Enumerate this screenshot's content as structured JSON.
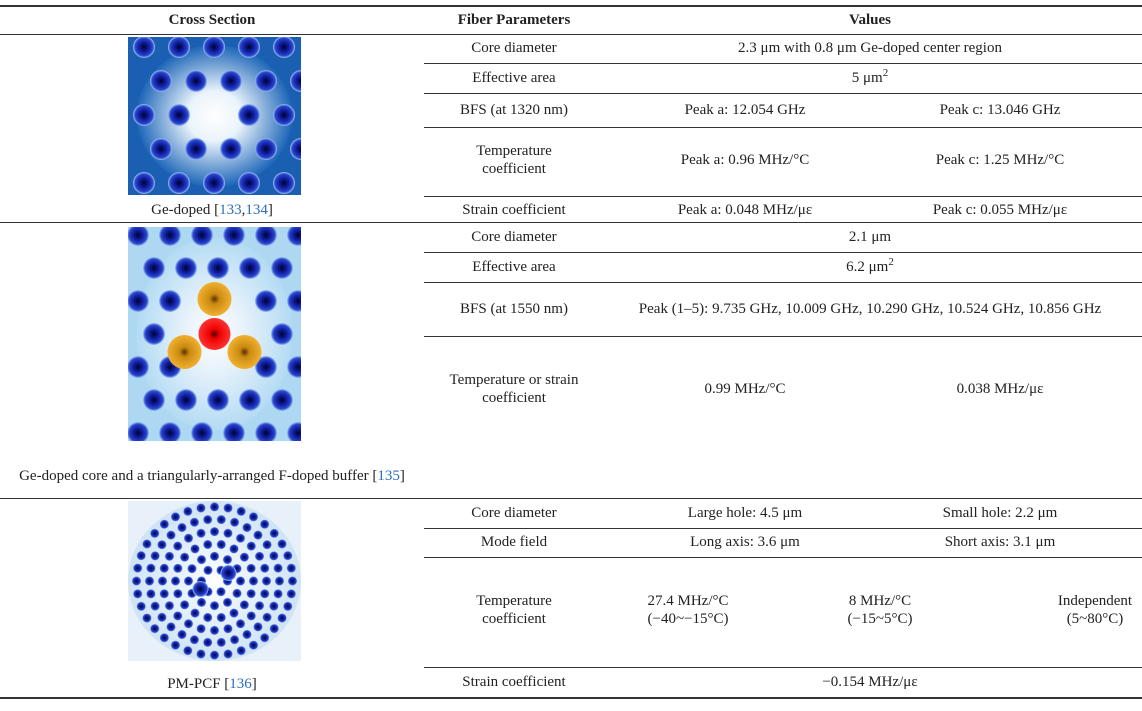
{
  "header": [
    "Cross Section",
    "Fiber Parameters",
    "Values"
  ],
  "sections": [
    {
      "caption": {
        "before": "Ge-doped [",
        "refs": [
          "133",
          "134"
        ],
        "separator": ",",
        "after": "]"
      },
      "rows": [
        {
          "param": "Core diameter",
          "values": [
            "2.3 μm with 0.8 μm Ge-doped center region"
          ]
        },
        {
          "param": "Effective area",
          "values": [
            {
              "text": "5 μm",
              "sup": "2"
            }
          ]
        },
        {
          "param": "BFS (at 1320 nm)",
          "values": [
            "Peak a: 12.054 GHz",
            "Peak c: 13.046 GHz"
          ]
        },
        {
          "param": "Temperature coefficient",
          "values": [
            "Peak a: 0.96 MHz/°C",
            "Peak c: 1.25 MHz/°C"
          ]
        },
        {
          "param": "Strain coefficient",
          "values": [
            "Peak a: 0.048 MHz/με",
            "Peak c: 0.055 MHz/με"
          ]
        }
      ]
    },
    {
      "caption": {
        "before": "Ge-doped core and a triangularly-arranged F-doped buffer [",
        "refs": [
          "135"
        ],
        "separator": ",",
        "after": "]"
      },
      "rows": [
        {
          "param": "Core diameter",
          "values": [
            "2.1 μm"
          ]
        },
        {
          "param": "Effective area",
          "values": [
            {
              "text": "6.2 μm",
              "sup": "2"
            }
          ]
        },
        {
          "param": "BFS (at 1550 nm)",
          "values": [
            "Peak (1–5): 9.735 GHz, 10.009 GHz, 10.290 GHz, 10.524 GHz, 10.856 GHz"
          ]
        },
        {
          "param": "Temperature or strain coefficient",
          "values": [
            "0.99 MHz/°C",
            "0.038 MHz/με"
          ]
        }
      ]
    },
    {
      "caption": {
        "before": "PM-PCF [",
        "refs": [
          "136"
        ],
        "separator": ",",
        "after": "]"
      },
      "rows": [
        {
          "param": "Core diameter",
          "values": [
            "Large hole: 4.5 μm",
            "Small hole: 2.2 μm"
          ]
        },
        {
          "param": "Mode field",
          "values": [
            "Long axis: 3.6 μm",
            "Short axis: 3.1 μm"
          ]
        },
        {
          "param": "Temperature coefficient",
          "values": [
            {
              "text": "27.4 MHz/°C",
              "note": "(−40~−15°C)"
            },
            {
              "text": "8 MHz/°C",
              "note": "(−15~5°C)"
            },
            {
              "text": "Independent",
              "note": "(5~80°C)"
            }
          ]
        },
        {
          "param": "Strain coefficient",
          "values": [
            "−0.154 MHz/με"
          ]
        }
      ]
    }
  ]
}
